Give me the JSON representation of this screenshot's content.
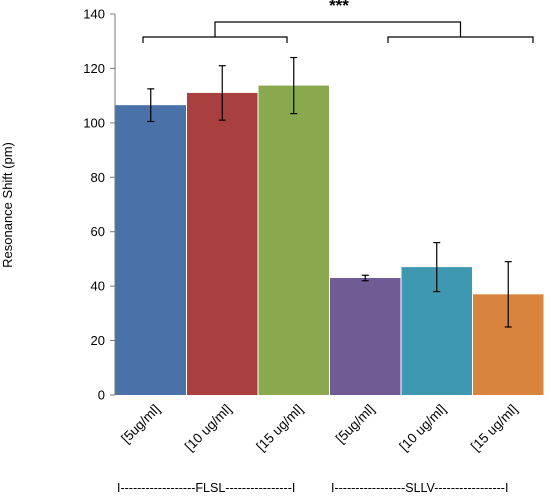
{
  "chart_data": {
    "type": "bar",
    "categories": [
      "[5ug/ml]",
      "[10 ug/ml]",
      "[15 ug/ml]",
      "[5ug/ml]",
      "[10 ug/ml]",
      "[15 ug/ml]"
    ],
    "values": [
      106.5,
      111,
      113.7,
      43,
      47,
      37
    ],
    "errors": [
      6,
      10,
      10.3,
      1,
      9,
      12
    ],
    "colors": [
      "#4a72a8",
      "#a8403f",
      "#8aa84d",
      "#715b94",
      "#3e98b0",
      "#d9843e"
    ],
    "groups": [
      {
        "name": "FLSL",
        "line": "I------------------FLSL----------------I"
      },
      {
        "name": "SLLV",
        "line": "I-----------------SLLV-----------------I"
      }
    ],
    "ylabel": "Resonance Shift (pm)",
    "xlabel": "",
    "title": "",
    "ylim": [
      0,
      140
    ],
    "yticks": [
      0,
      20,
      40,
      60,
      80,
      100,
      120,
      140
    ],
    "significance": "***",
    "grid": false
  }
}
